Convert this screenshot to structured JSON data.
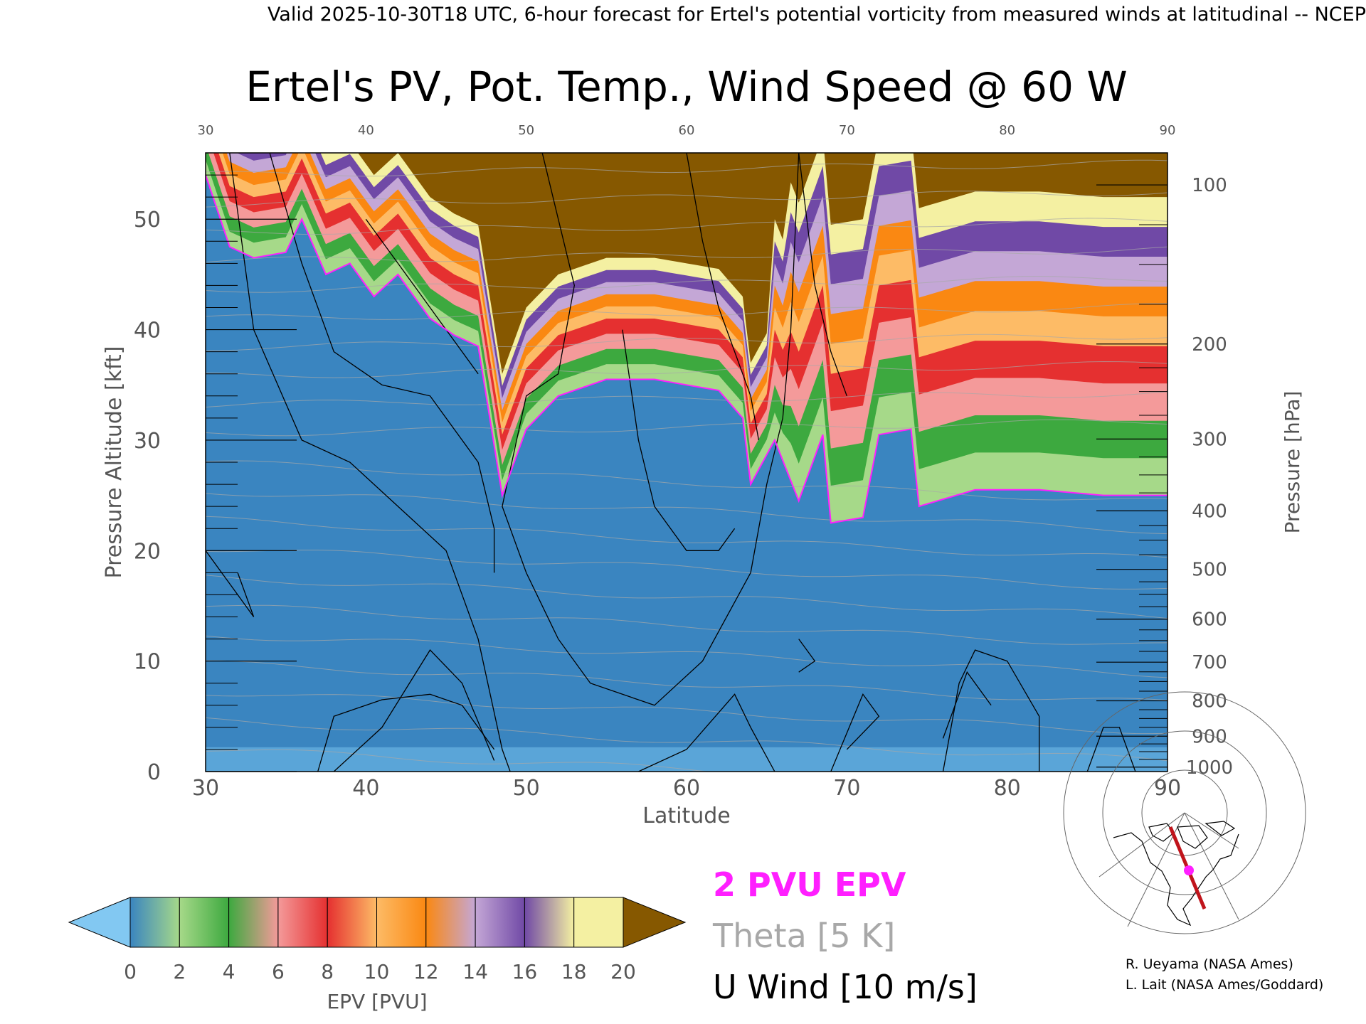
{
  "header": {
    "valid_line": "Valid 2025-10-30T18 UTC, 6-hour forecast for Ertel's potential vorticity from measured winds at latitudinal -- NCEP"
  },
  "chart_data": {
    "type": "heatmap",
    "title": "Ertel's PV, Pot. Temp., Wind Speed @ 60 W",
    "xlabel": "Latitude",
    "ylabel_left": "Pressure Altitude [kft]",
    "ylabel_right": "Pressure [hPa]",
    "xlim": [
      30,
      90
    ],
    "ylim_kft": [
      0,
      56
    ],
    "x_ticks": [
      "30",
      "40",
      "50",
      "60",
      "70",
      "80",
      "90"
    ],
    "y_ticks_kft": [
      "0",
      "10",
      "20",
      "30",
      "40",
      "50"
    ],
    "pressure_ticks": [
      {
        "label": "100",
        "kft": 53.1
      },
      {
        "label": "200",
        "kft": 38.7
      },
      {
        "label": "300",
        "kft": 30.1
      },
      {
        "label": "400",
        "kft": 23.6
      },
      {
        "label": "500",
        "kft": 18.3
      },
      {
        "label": "600",
        "kft": 13.8
      },
      {
        "label": "700",
        "kft": 9.9
      },
      {
        "label": "800",
        "kft": 6.4
      },
      {
        "label": "900",
        "kft": 3.2
      },
      {
        "label": "1000",
        "kft": 0.4
      }
    ],
    "tropopause_2pvu_kft": [
      {
        "lat": 30,
        "kft": 54
      },
      {
        "lat": 31.5,
        "kft": 47.5
      },
      {
        "lat": 33,
        "kft": 46.5
      },
      {
        "lat": 35,
        "kft": 47
      },
      {
        "lat": 36,
        "kft": 50
      },
      {
        "lat": 37.5,
        "kft": 45
      },
      {
        "lat": 39,
        "kft": 46
      },
      {
        "lat": 40.5,
        "kft": 43
      },
      {
        "lat": 42,
        "kft": 45
      },
      {
        "lat": 44,
        "kft": 41
      },
      {
        "lat": 45.5,
        "kft": 39.5
      },
      {
        "lat": 47,
        "kft": 38.5
      },
      {
        "lat": 48.5,
        "kft": 25
      },
      {
        "lat": 50,
        "kft": 31
      },
      {
        "lat": 52,
        "kft": 34
      },
      {
        "lat": 55,
        "kft": 35.5
      },
      {
        "lat": 58,
        "kft": 35.5
      },
      {
        "lat": 60,
        "kft": 35
      },
      {
        "lat": 62,
        "kft": 34.5
      },
      {
        "lat": 63.5,
        "kft": 32
      },
      {
        "lat": 64,
        "kft": 26
      },
      {
        "lat": 65.5,
        "kft": 30
      },
      {
        "lat": 67,
        "kft": 24.5
      },
      {
        "lat": 68.5,
        "kft": 30.5
      },
      {
        "lat": 69,
        "kft": 22.5
      },
      {
        "lat": 71,
        "kft": 23
      },
      {
        "lat": 72,
        "kft": 30.5
      },
      {
        "lat": 74,
        "kft": 31
      },
      {
        "lat": 74.5,
        "kft": 24
      },
      {
        "lat": 78,
        "kft": 25.5
      },
      {
        "lat": 82,
        "kft": 25.5
      },
      {
        "lat": 86,
        "kft": 25
      },
      {
        "lat": 90,
        "kft": 25
      }
    ],
    "legend": {
      "colorbar_label": "EPV [PVU]",
      "colorbar_ticks": [
        "0",
        "2",
        "4",
        "6",
        "8",
        "10",
        "12",
        "14",
        "16",
        "18",
        "20"
      ],
      "colorbar_colors": [
        "#82c8f2",
        "#3a85c0",
        "#a6d989",
        "#3da93f",
        "#f49a9a",
        "#e53030",
        "#fdbb66",
        "#fa8812",
        "#c4a7d6",
        "#7049a6",
        "#f4f0a2",
        "#865800"
      ],
      "epv_label": "2 PVU EPV",
      "theta_label": "Theta [5 K]",
      "wind_label": "U Wind [10 m/s]",
      "epv_color": "#ff1fff",
      "theta_color": "#a8a8a8",
      "wind_color": "#000000"
    }
  },
  "credits": {
    "line1": "R. Ueyama (NASA Ames)",
    "line2": "L. Lait (NASA Ames/Goddard)"
  },
  "map_inset": {
    "icon": "polar-stereographic-map-icon",
    "marker_color": "#ff1fff",
    "section_color": "#c0141b"
  }
}
